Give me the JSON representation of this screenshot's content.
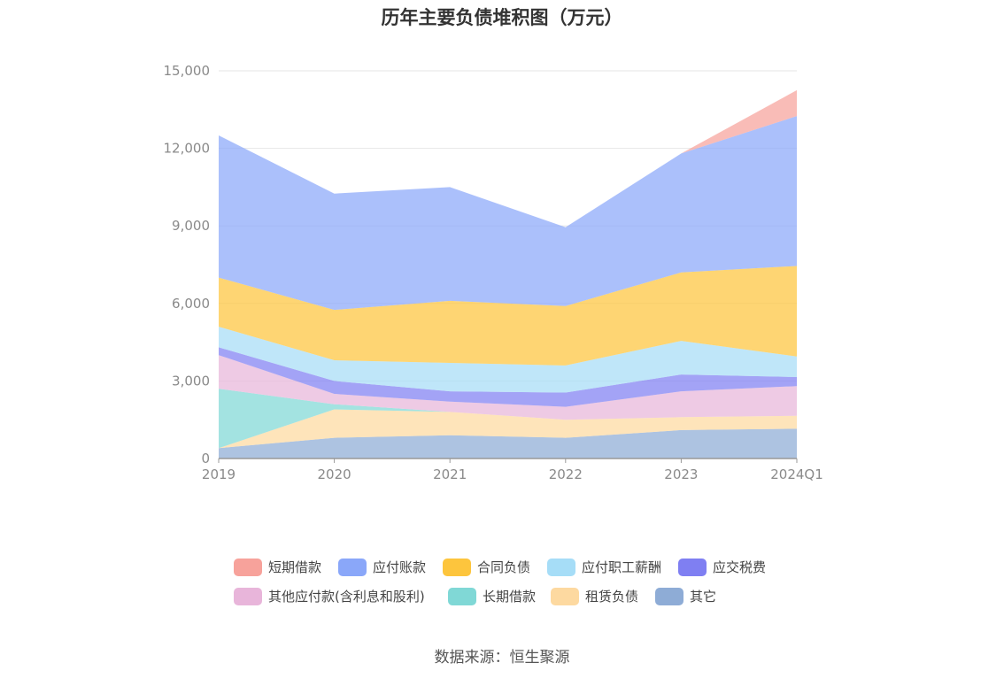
{
  "title": "历年主要负债堆积图（万元）",
  "source": "数据来源：恒生聚源",
  "chart_data": {
    "type": "area",
    "stacked": true,
    "title": "历年主要负债堆积图（万元）",
    "x": [
      "2019",
      "2020",
      "2021",
      "2022",
      "2023",
      "2024Q1"
    ],
    "ylim": [
      0,
      15000
    ],
    "yticks": [
      "0",
      "3,000",
      "6,000",
      "9,000",
      "12,000",
      "15,000"
    ],
    "grid": true,
    "legend_position": "bottom",
    "series": [
      {
        "name": "其它",
        "color": "#8eacd6",
        "values": [
          400,
          800,
          900,
          800,
          1100,
          1150
        ]
      },
      {
        "name": "租赁负债",
        "color": "#fdd9a0",
        "values": [
          0,
          1100,
          900,
          700,
          500,
          500
        ]
      },
      {
        "name": "长期借款",
        "color": "#80d8d6",
        "values": [
          2300,
          200,
          0,
          0,
          0,
          0
        ]
      },
      {
        "name": "其他应付款(含利息和股利)",
        "color": "#e8b5da",
        "values": [
          1300,
          400,
          400,
          500,
          1000,
          1150
        ]
      },
      {
        "name": "应交税费",
        "color": "#7f7ff2",
        "values": [
          300,
          500,
          400,
          550,
          650,
          350
        ]
      },
      {
        "name": "应付职工薪酬",
        "color": "#a6ddf7",
        "values": [
          800,
          800,
          1100,
          1050,
          1300,
          800
        ]
      },
      {
        "name": "合同负债",
        "color": "#fdc53d",
        "values": [
          1900,
          1950,
          2400,
          2300,
          2650,
          3500
        ]
      },
      {
        "name": "应付账款",
        "color": "#8aa7f9",
        "values": [
          5500,
          4500,
          4400,
          3050,
          4600,
          5800
        ]
      },
      {
        "name": "短期借款",
        "color": "#f7a29b",
        "values": [
          0,
          0,
          0,
          0,
          0,
          1000
        ]
      }
    ]
  }
}
